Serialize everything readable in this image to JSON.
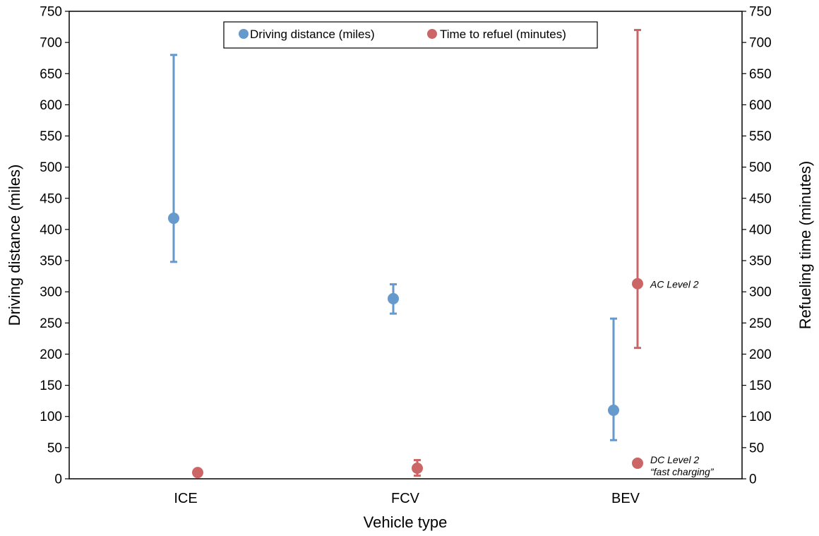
{
  "chart_data": {
    "type": "scatter",
    "xlabel": "Vehicle type",
    "ylabel_left": "Driving distance (miles)",
    "ylabel_right": "Refueling time (minutes)",
    "categories": [
      "ICE",
      "FCV",
      "BEV"
    ],
    "ylim_left": [
      0,
      750
    ],
    "ylim_right": [
      0,
      750
    ],
    "y_ticks": [
      0,
      50,
      100,
      150,
      200,
      250,
      300,
      350,
      400,
      450,
      500,
      550,
      600,
      650,
      700,
      750
    ],
    "grid": false,
    "legend_position": "top-center",
    "series": [
      {
        "name": "Driving distance (miles)",
        "color": "#6699cc",
        "axis": "left",
        "points": [
          {
            "category": "ICE",
            "value": 418,
            "low": 348,
            "high": 680
          },
          {
            "category": "FCV",
            "value": 289,
            "low": 265,
            "high": 312
          },
          {
            "category": "BEV",
            "value": 110,
            "low": 62,
            "high": 257
          }
        ]
      },
      {
        "name": "Time to refuel (minutes)",
        "color": "#cc6666",
        "axis": "right",
        "points": [
          {
            "category": "ICE",
            "value": 10,
            "low": null,
            "high": null,
            "label": ""
          },
          {
            "category": "FCV",
            "value": 17,
            "low": 5,
            "high": 30,
            "label": ""
          },
          {
            "category": "BEV",
            "value": 313,
            "low": 210,
            "high": 720,
            "label": "AC Level 2"
          },
          {
            "category": "BEV",
            "value": 25,
            "low": null,
            "high": null,
            "label": "DC Level 2",
            "label2": "“fast charging”"
          }
        ]
      }
    ]
  }
}
